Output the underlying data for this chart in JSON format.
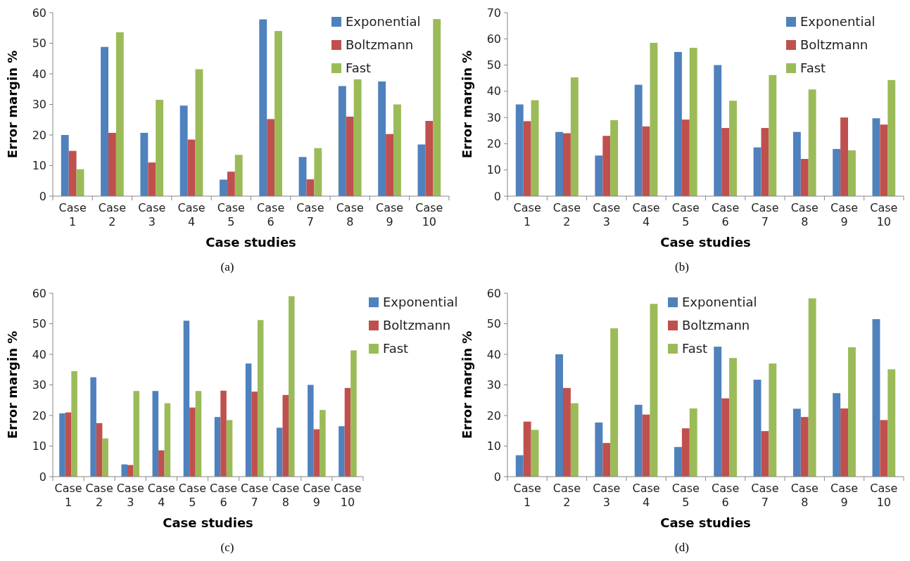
{
  "chart_data": [
    {
      "type": "bar",
      "xlabel": "Case studies",
      "ylabel": "Error margin %",
      "categories": [
        "Case 1",
        "Case 2",
        "Case 3",
        "Case 4",
        "Case 5",
        "Case 6",
        "Case 7",
        "Case 8",
        "Case 9",
        "Case 10"
      ],
      "ylim": [
        0,
        60
      ],
      "yticks": [
        0,
        10,
        20,
        30,
        40,
        50,
        60
      ],
      "grid": false,
      "legend": "top right",
      "annotations": [
        "(a)"
      ],
      "series": [
        {
          "name": "Exponential",
          "color": "#4f81bd",
          "values": [
            20,
            48.8,
            20.7,
            29.6,
            5.4,
            57.8,
            12.8,
            36,
            37.5,
            16.9
          ]
        },
        {
          "name": "Boltzmann",
          "color": "#c0504d",
          "values": [
            14.8,
            20.7,
            11,
            18.5,
            8,
            25.2,
            5.5,
            26,
            20.3,
            24.6
          ]
        },
        {
          "name": "Fast",
          "color": "#9bbb59",
          "values": [
            8.8,
            53.6,
            31.5,
            41.5,
            13.5,
            54,
            15.7,
            38.2,
            30,
            57.9
          ]
        }
      ]
    },
    {
      "type": "bar",
      "xlabel": "Case studies",
      "ylabel": "Error margin %",
      "categories": [
        "Case 1",
        "Case 2",
        "Case 3",
        "Case 4",
        "Case 5",
        "Case 6",
        "Case 7",
        "Case 8",
        "Case 9",
        "Case 10"
      ],
      "ylim": [
        0,
        70
      ],
      "yticks": [
        0,
        10,
        20,
        30,
        40,
        50,
        60,
        70
      ],
      "grid": false,
      "legend": "top right",
      "annotations": [
        "(b)"
      ],
      "series": [
        {
          "name": "Exponential",
          "color": "#4f81bd",
          "values": [
            35,
            24.5,
            15.5,
            42.5,
            55,
            50,
            18.6,
            24.5,
            18,
            29.7
          ]
        },
        {
          "name": "Boltzmann",
          "color": "#c0504d",
          "values": [
            28.6,
            24,
            23,
            26.6,
            29.2,
            26,
            26,
            14.2,
            30,
            27.3
          ]
        },
        {
          "name": "Fast",
          "color": "#9bbb59",
          "values": [
            36.6,
            45.3,
            29,
            58.5,
            56.6,
            36.4,
            46.2,
            40.7,
            17.5,
            44.3
          ]
        }
      ]
    },
    {
      "type": "bar",
      "xlabel": "Case studies",
      "ylabel": "Error margin %",
      "categories": [
        "Case 1",
        "Case 2",
        "Case 3",
        "Case 4",
        "Case 5",
        "Case 6",
        "Case 7",
        "Case 8",
        "Case 9",
        "Case 10"
      ],
      "ylim": [
        0,
        60
      ],
      "yticks": [
        0,
        10,
        20,
        30,
        40,
        50,
        60
      ],
      "grid": false,
      "legend": "right",
      "annotations": [
        "(c)"
      ],
      "series": [
        {
          "name": "Exponential",
          "color": "#4f81bd",
          "values": [
            20.7,
            32.5,
            4,
            28,
            51,
            19.5,
            37,
            16,
            30,
            16.5
          ]
        },
        {
          "name": "Boltzmann",
          "color": "#c0504d",
          "values": [
            21,
            17.5,
            3.8,
            8.6,
            22.6,
            28.1,
            27.8,
            26.7,
            15.5,
            29
          ]
        },
        {
          "name": "Fast",
          "color": "#9bbb59",
          "values": [
            34.5,
            12.5,
            28,
            24,
            28,
            18.5,
            51.2,
            59,
            21.8,
            41.3
          ]
        }
      ]
    },
    {
      "type": "bar",
      "xlabel": "Case studies",
      "ylabel": "Error margin %",
      "categories": [
        "Case 1",
        "Case 2",
        "Case 3",
        "Case 4",
        "Case 5",
        "Case 6",
        "Case 7",
        "Case 8",
        "Case 9",
        "Case 10"
      ],
      "ylim": [
        0,
        60
      ],
      "yticks": [
        0,
        10,
        20,
        30,
        40,
        50,
        60
      ],
      "grid": false,
      "legend": "top",
      "annotations": [
        "(d)"
      ],
      "series": [
        {
          "name": "Exponential",
          "color": "#4f81bd",
          "values": [
            7,
            40,
            17.7,
            23.5,
            9.7,
            42.5,
            31.7,
            22.2,
            27.3,
            51.5
          ]
        },
        {
          "name": "Boltzmann",
          "color": "#c0504d",
          "values": [
            18,
            29,
            11,
            20.3,
            15.8,
            25.6,
            14.9,
            19.5,
            22.3,
            18.5
          ]
        },
        {
          "name": "Fast",
          "color": "#9bbb59",
          "values": [
            15.3,
            24,
            48.5,
            56.5,
            22.3,
            38.8,
            37,
            58.3,
            42.3,
            35.1
          ]
        }
      ]
    }
  ]
}
